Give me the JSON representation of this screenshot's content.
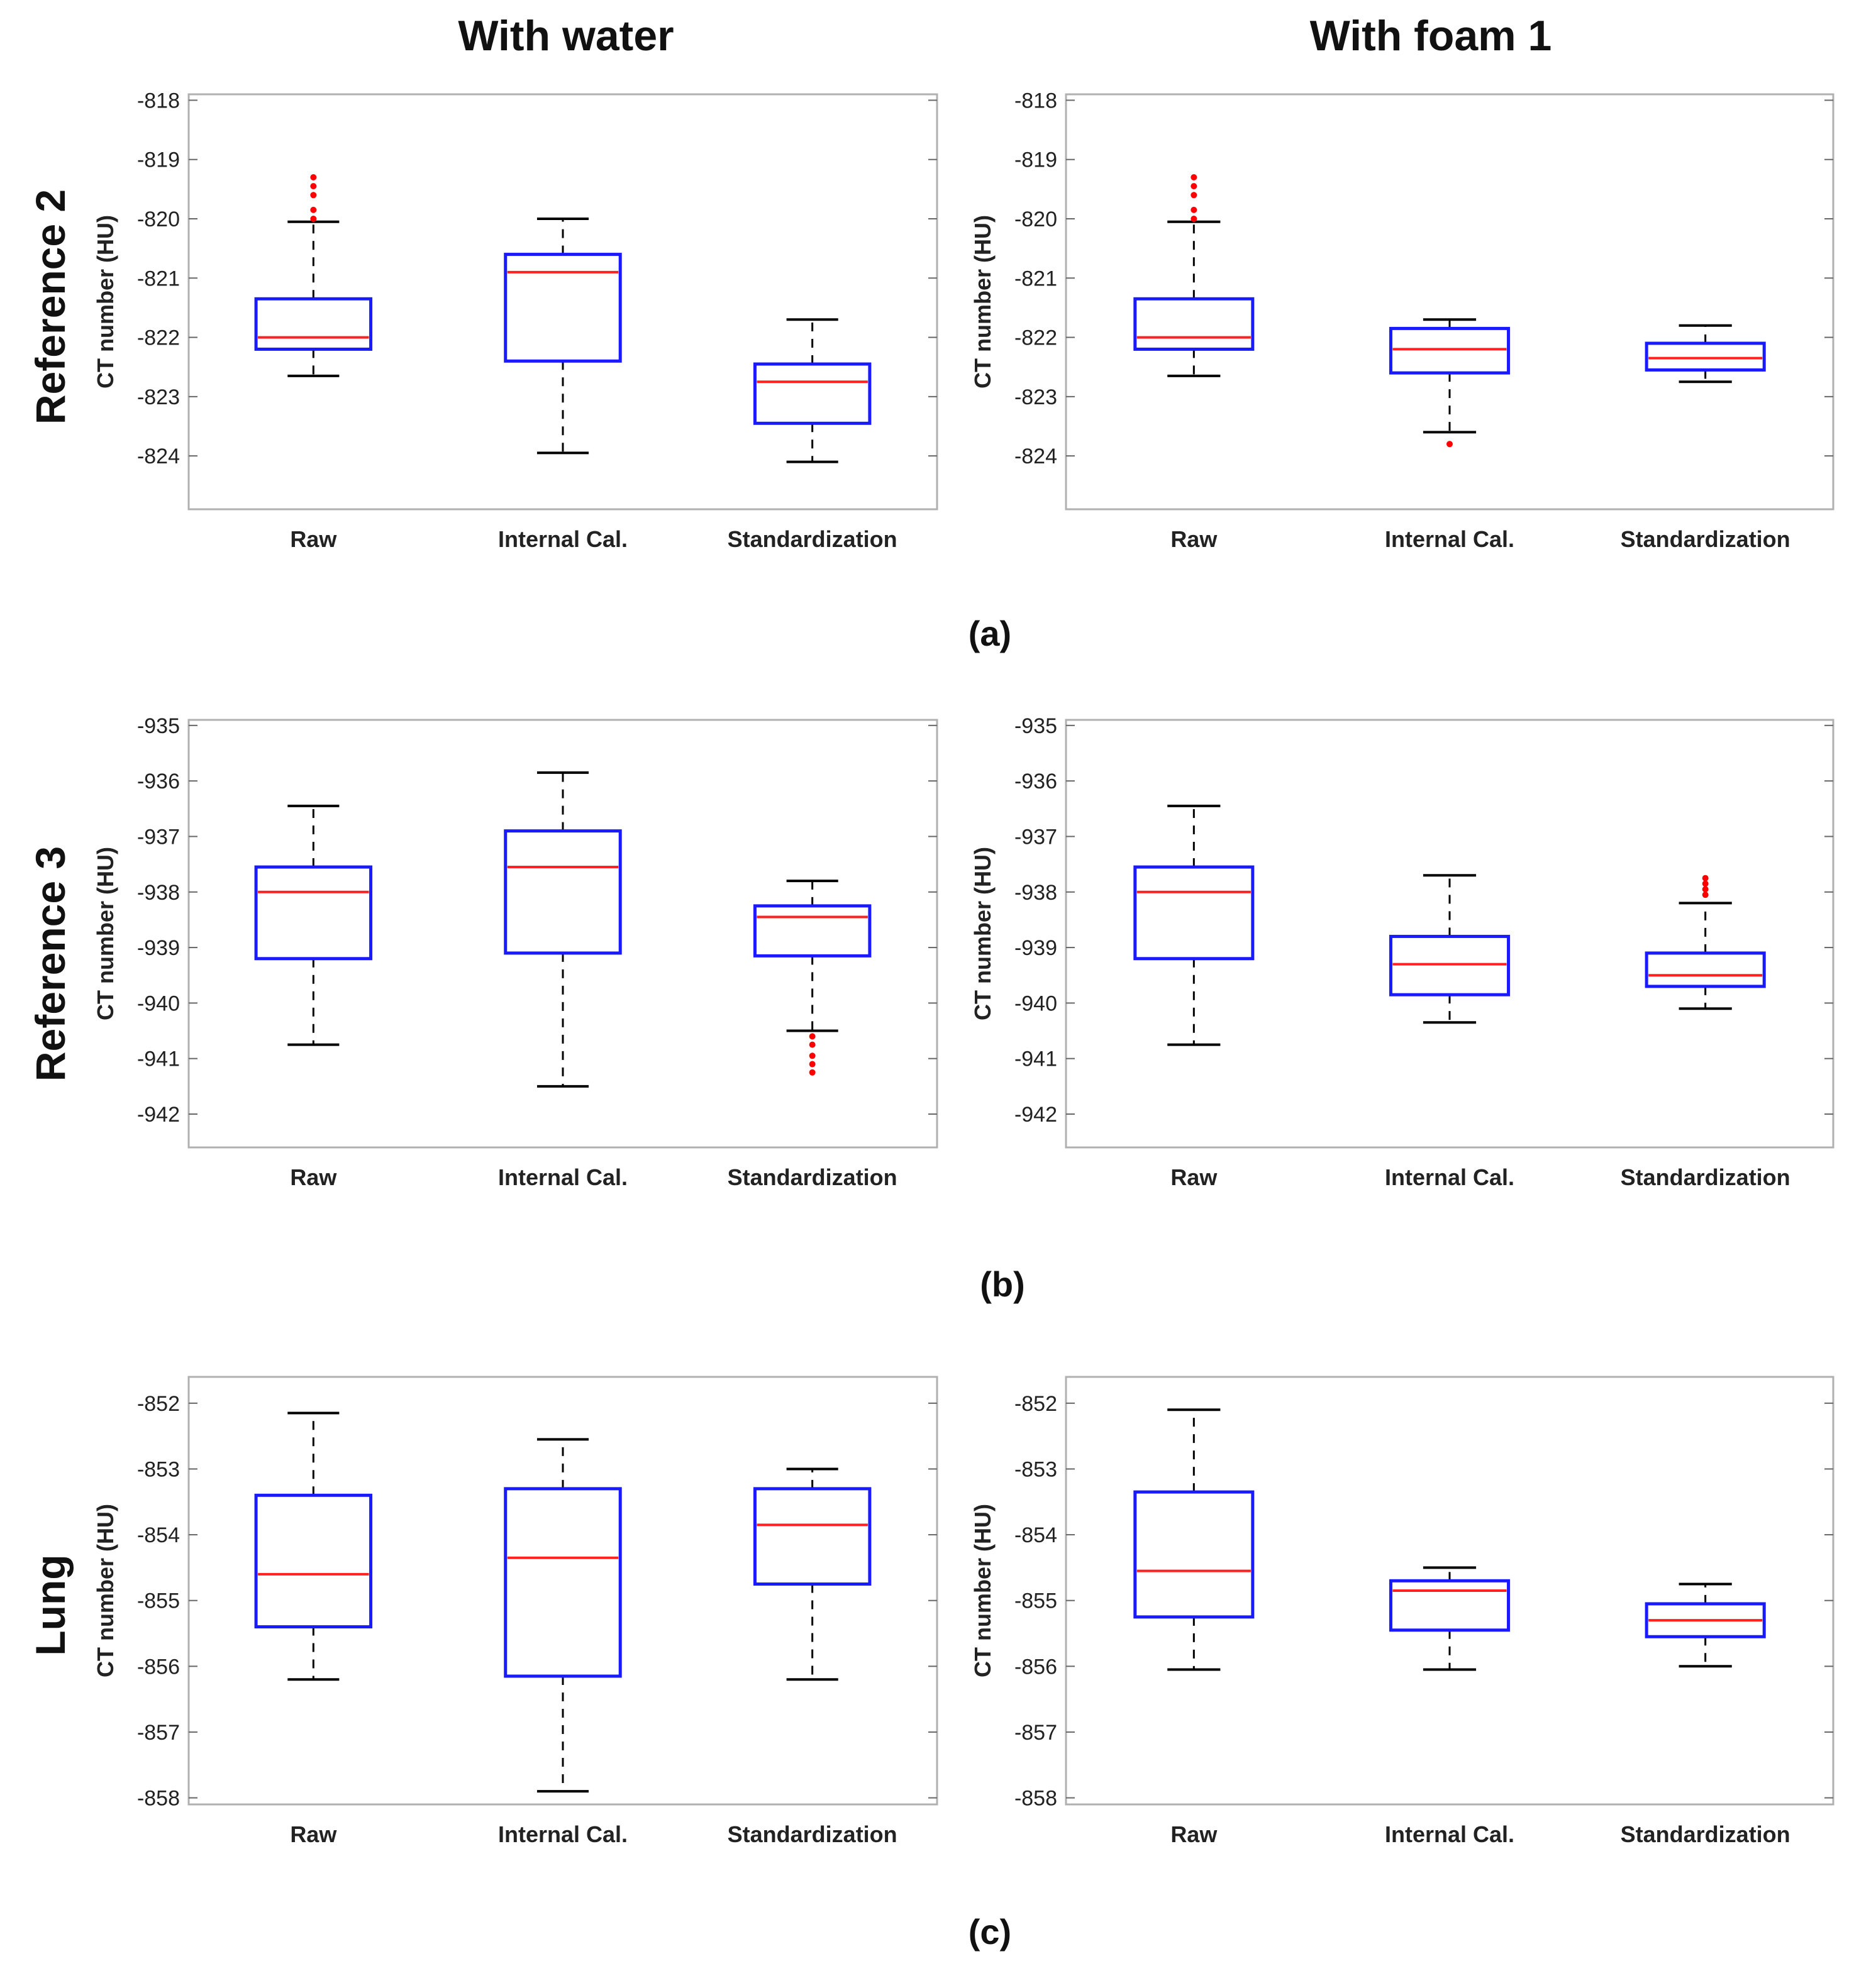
{
  "columns": [
    "With water",
    "With foam 1"
  ],
  "rows": [
    "Reference 2",
    "Reference 3",
    "Lung"
  ],
  "panel_labels": [
    "(a)",
    "(b)",
    "(c)"
  ],
  "colors": {
    "box": "#1a1aff",
    "median": "#ff2020",
    "whisker": "#000000",
    "outlier": "#ff0000",
    "frame": "#b0b0b0"
  },
  "chart_data": [
    {
      "type": "boxplot",
      "row": "Reference 2",
      "column": "With water",
      "ylabel": "CT number (HU)",
      "ylim": [
        -824.9,
        -817.9
      ],
      "yticks": [
        -818,
        -819,
        -820,
        -821,
        -822,
        -823,
        -824
      ],
      "categories": [
        "Raw",
        "Internal Cal.",
        "Standardization"
      ],
      "boxes": [
        {
          "q1": -822.2,
          "median": -822.0,
          "q3": -821.35,
          "whisker_low": -822.65,
          "whisker_high": -820.05,
          "outliers": [
            -819.3,
            -819.45,
            -819.6,
            -819.85,
            -820.0
          ]
        },
        {
          "q1": -822.4,
          "median": -820.9,
          "q3": -820.6,
          "whisker_low": -823.95,
          "whisker_high": -820.0,
          "outliers": []
        },
        {
          "q1": -823.45,
          "median": -822.75,
          "q3": -822.45,
          "whisker_low": -824.1,
          "whisker_high": -821.7,
          "outliers": []
        }
      ]
    },
    {
      "type": "boxplot",
      "row": "Reference 2",
      "column": "With foam 1",
      "ylabel": "CT number (HU)",
      "ylim": [
        -824.9,
        -817.9
      ],
      "yticks": [
        -818,
        -819,
        -820,
        -821,
        -822,
        -823,
        -824
      ],
      "categories": [
        "Raw",
        "Internal Cal.",
        "Standardization"
      ],
      "boxes": [
        {
          "q1": -822.2,
          "median": -822.0,
          "q3": -821.35,
          "whisker_low": -822.65,
          "whisker_high": -820.05,
          "outliers": [
            -819.3,
            -819.45,
            -819.6,
            -819.85,
            -820.0
          ]
        },
        {
          "q1": -822.6,
          "median": -822.2,
          "q3": -821.85,
          "whisker_low": -823.6,
          "whisker_high": -821.7,
          "outliers": [
            -823.8
          ]
        },
        {
          "q1": -822.55,
          "median": -822.35,
          "q3": -822.1,
          "whisker_low": -822.75,
          "whisker_high": -821.8,
          "outliers": []
        }
      ]
    },
    {
      "type": "boxplot",
      "row": "Reference 3",
      "column": "With water",
      "ylabel": "CT number (HU)",
      "ylim": [
        -942.6,
        -934.9
      ],
      "yticks": [
        -935,
        -936,
        -937,
        -938,
        -939,
        -940,
        -941,
        -942
      ],
      "categories": [
        "Raw",
        "Internal Cal.",
        "Standardization"
      ],
      "boxes": [
        {
          "q1": -939.2,
          "median": -938.0,
          "q3": -937.55,
          "whisker_low": -940.75,
          "whisker_high": -936.45,
          "outliers": []
        },
        {
          "q1": -939.1,
          "median": -937.55,
          "q3": -936.9,
          "whisker_low": -941.5,
          "whisker_high": -935.85,
          "outliers": []
        },
        {
          "q1": -939.15,
          "median": -938.45,
          "q3": -938.25,
          "whisker_low": -940.5,
          "whisker_high": -937.8,
          "outliers": [
            -940.6,
            -940.75,
            -940.95,
            -941.1,
            -941.25
          ]
        }
      ]
    },
    {
      "type": "boxplot",
      "row": "Reference 3",
      "column": "With foam 1",
      "ylabel": "CT number (HU)",
      "ylim": [
        -942.6,
        -934.9
      ],
      "yticks": [
        -935,
        -936,
        -937,
        -938,
        -939,
        -940,
        -941,
        -942
      ],
      "categories": [
        "Raw",
        "Internal Cal.",
        "Standardization"
      ],
      "boxes": [
        {
          "q1": -939.2,
          "median": -938.0,
          "q3": -937.55,
          "whisker_low": -940.75,
          "whisker_high": -936.45,
          "outliers": []
        },
        {
          "q1": -939.85,
          "median": -939.3,
          "q3": -938.8,
          "whisker_low": -940.35,
          "whisker_high": -937.7,
          "outliers": []
        },
        {
          "q1": -939.7,
          "median": -939.5,
          "q3": -939.1,
          "whisker_low": -940.1,
          "whisker_high": -938.2,
          "outliers": [
            -937.75,
            -937.85,
            -937.95,
            -938.05
          ]
        }
      ]
    },
    {
      "type": "boxplot",
      "row": "Lung",
      "column": "With water",
      "ylabel": "CT number (HU)",
      "ylim": [
        -858.1,
        -851.6
      ],
      "yticks": [
        -852,
        -853,
        -854,
        -855,
        -856,
        -857,
        -858
      ],
      "categories": [
        "Raw",
        "Internal Cal.",
        "Standardization"
      ],
      "boxes": [
        {
          "q1": -855.4,
          "median": -854.6,
          "q3": -853.4,
          "whisker_low": -856.2,
          "whisker_high": -852.15,
          "outliers": []
        },
        {
          "q1": -856.15,
          "median": -854.35,
          "q3": -853.3,
          "whisker_low": -857.9,
          "whisker_high": -852.55,
          "outliers": []
        },
        {
          "q1": -854.75,
          "median": -853.85,
          "q3": -853.3,
          "whisker_low": -856.2,
          "whisker_high": -853.0,
          "outliers": []
        }
      ]
    },
    {
      "type": "boxplot",
      "row": "Lung",
      "column": "With foam 1",
      "ylabel": "CT number (HU)",
      "ylim": [
        -858.1,
        -851.6
      ],
      "yticks": [
        -852,
        -853,
        -854,
        -855,
        -856,
        -857,
        -858
      ],
      "categories": [
        "Raw",
        "Internal Cal.",
        "Standardization"
      ],
      "boxes": [
        {
          "q1": -855.25,
          "median": -854.55,
          "q3": -853.35,
          "whisker_low": -856.05,
          "whisker_high": -852.1,
          "outliers": []
        },
        {
          "q1": -855.45,
          "median": -854.85,
          "q3": -854.7,
          "whisker_low": -856.05,
          "whisker_high": -854.5,
          "outliers": []
        },
        {
          "q1": -855.55,
          "median": -855.3,
          "q3": -855.05,
          "whisker_low": -856.0,
          "whisker_high": -854.75,
          "outliers": []
        }
      ]
    }
  ]
}
